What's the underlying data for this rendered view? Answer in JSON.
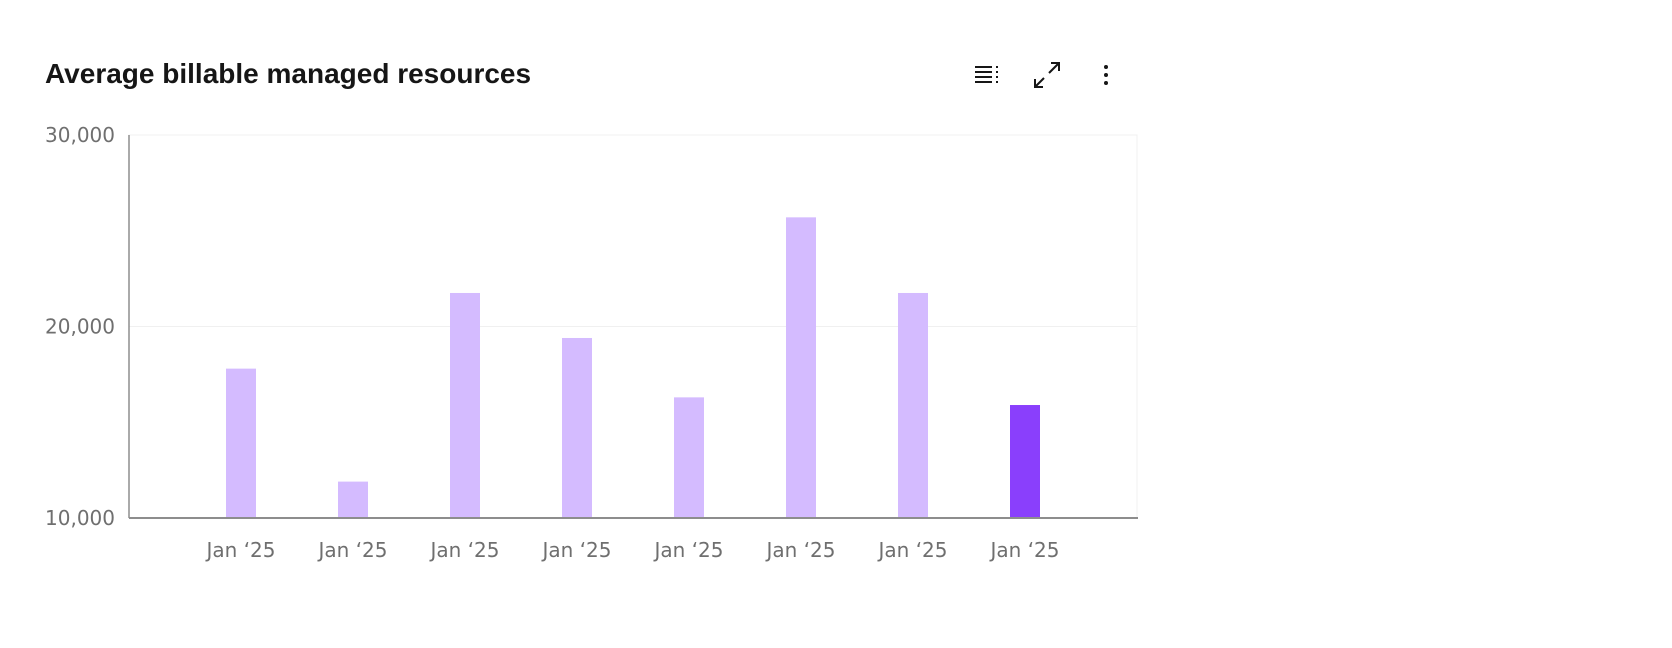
{
  "header": {
    "title": "Average billable managed resources"
  },
  "toolbar": {
    "icons": [
      "table-view-icon",
      "maximize-icon",
      "overflow-menu-icon"
    ]
  },
  "chart_data": {
    "type": "bar",
    "title": "Average billable managed resources",
    "categories": [
      "Jan ‘25",
      "Jan ‘25",
      "Jan ‘25",
      "Jan ‘25",
      "Jan ‘25",
      "Jan ‘25",
      "Jan ‘25",
      "Jan ‘25"
    ],
    "values": [
      17800,
      11900,
      21750,
      19400,
      16300,
      25700,
      21750,
      15900
    ],
    "ylim": [
      10000,
      30000
    ],
    "yticks": [
      "10,000",
      "20,000",
      "30,000"
    ],
    "ytick_values": [
      10000,
      20000,
      30000
    ],
    "grid": true,
    "colors": {
      "bar": "#d4bbff",
      "highlight": "#8a3ffc",
      "axis": "#8d8d8d",
      "grid": "#f0f0f0"
    },
    "highlighted_index": 7
  }
}
